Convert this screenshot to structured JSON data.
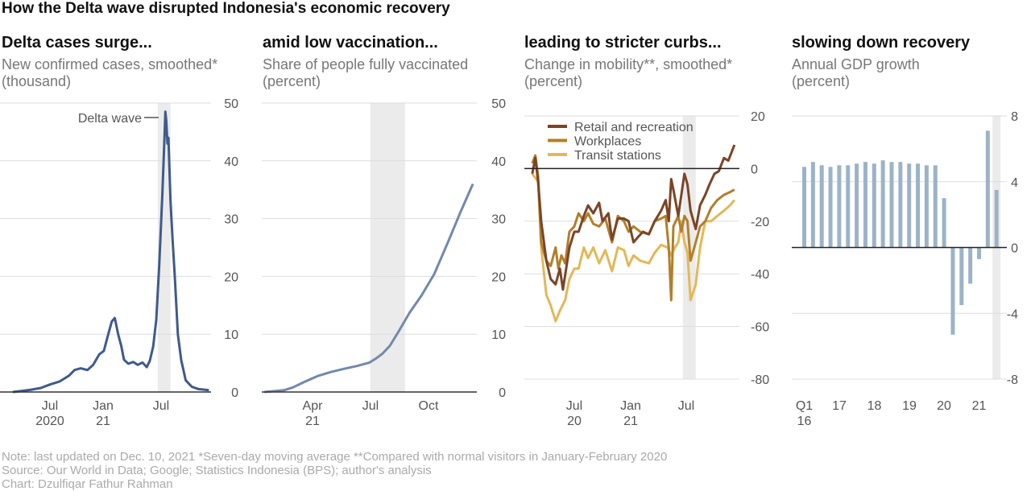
{
  "title": "How the Delta wave disrupted Indonesia's economic recovery",
  "footnotes": {
    "note": "Note: last updated on Dec. 10, 2021 *Seven-day moving average **Compared with normal visitors in January-February 2020",
    "source": "Source: Our World in Data; Google; Statistics Indonesia (BPS); author's analysis",
    "chart": "Chart: Dzulfiqar Fathur Rahman"
  },
  "colors": {
    "cases": "#3f5a8c",
    "vaccination": "#7289ab",
    "retail": "#7b4427",
    "workplaces": "#b17f2b",
    "transit": "#e2b858",
    "gdp_bar": "#9cb3c7",
    "highlight": "#ebebeb",
    "grid": "#dddddd"
  },
  "chart_data": [
    {
      "type": "line",
      "title": "Delta cases surge...",
      "subtitle": [
        "New confirmed cases, smoothed*",
        "(thousand)"
      ],
      "annotation": "Delta wave",
      "highlight": [
        "2021-06-20",
        "2021-08-01"
      ],
      "ylim": [
        0,
        50
      ],
      "yticks": [
        "0",
        "10",
        "20",
        "30",
        "40",
        "50"
      ],
      "xticks": [
        [
          "Jul",
          "2020"
        ],
        [
          "Jan",
          "21"
        ],
        [
          "Jul",
          ""
        ]
      ],
      "x": [
        "2020-03-01",
        "2020-04-01",
        "2020-05-01",
        "2020-06-01",
        "2020-07-01",
        "2020-08-01",
        "2020-09-01",
        "2020-09-20",
        "2020-10-10",
        "2020-11-01",
        "2020-11-20",
        "2020-12-10",
        "2020-12-25",
        "2021-01-10",
        "2021-01-20",
        "2021-01-30",
        "2021-02-10",
        "2021-02-20",
        "2021-03-01",
        "2021-03-15",
        "2021-04-01",
        "2021-04-15",
        "2021-05-01",
        "2021-05-15",
        "2021-05-25",
        "2021-06-05",
        "2021-06-15",
        "2021-06-25",
        "2021-07-05",
        "2021-07-12",
        "2021-07-15",
        "2021-07-18",
        "2021-07-22",
        "2021-07-25",
        "2021-08-01",
        "2021-08-08",
        "2021-08-15",
        "2021-08-25",
        "2021-09-05",
        "2021-09-20",
        "2021-10-10",
        "2021-11-01",
        "2021-11-20",
        "2021-12-05"
      ],
      "values": [
        0.0,
        0.2,
        0.4,
        0.7,
        1.3,
        1.8,
        2.8,
        3.8,
        4.1,
        3.8,
        4.7,
        6.5,
        7.1,
        10.3,
        12.2,
        12.8,
        10.0,
        8.0,
        5.6,
        4.9,
        5.2,
        4.7,
        5.1,
        4.3,
        5.4,
        7.9,
        12.5,
        22.0,
        34.0,
        44.0,
        48.5,
        47.0,
        43.0,
        44.0,
        33.0,
        26.0,
        20.0,
        10.0,
        5.5,
        2.0,
        0.9,
        0.5,
        0.4,
        0.3
      ]
    },
    {
      "type": "line",
      "title": "amid low vaccination...",
      "subtitle": [
        "Share of people fully vaccinated",
        "(percent)"
      ],
      "highlight": [
        "2021-07-01",
        "2021-08-25"
      ],
      "ylim": [
        0,
        50
      ],
      "yticks": [
        "0",
        "10",
        "20",
        "30",
        "40",
        "50"
      ],
      "xticks": [
        [
          "Apr",
          "21"
        ],
        [
          "Jul",
          ""
        ],
        [
          "Oct",
          ""
        ]
      ],
      "x": [
        "2021-01-15",
        "2021-02-15",
        "2021-03-01",
        "2021-03-20",
        "2021-04-10",
        "2021-05-01",
        "2021-05-20",
        "2021-06-10",
        "2021-06-30",
        "2021-07-10",
        "2021-07-20",
        "2021-08-01",
        "2021-08-15",
        "2021-09-01",
        "2021-09-20",
        "2021-10-10",
        "2021-11-01",
        "2021-11-20",
        "2021-12-10"
      ],
      "values": [
        0,
        0.3,
        0.8,
        1.8,
        2.8,
        3.5,
        4.0,
        4.5,
        5.1,
        5.8,
        6.6,
        8.0,
        10.5,
        13.7,
        16.7,
        20.4,
        26.0,
        31.0,
        36.0
      ]
    },
    {
      "type": "line",
      "title": "leading to stricter curbs...",
      "subtitle": [
        "Change in mobility**, smoothed*",
        "(percent)"
      ],
      "highlight": [
        "2021-06-20",
        "2021-08-01"
      ],
      "ylim": [
        -80,
        20
      ],
      "yticks": [
        "20",
        "0",
        "-20",
        "-40",
        "-60",
        "-80"
      ],
      "xticks": [
        [
          "Jul",
          "20"
        ],
        [
          "Jan",
          "21"
        ],
        [
          "Jul",
          ""
        ]
      ],
      "series": [
        {
          "name": "Retail and recreation",
          "x": [
            "2020-02-15",
            "2020-02-25",
            "2020-03-05",
            "2020-03-15",
            "2020-04-01",
            "2020-04-15",
            "2020-05-01",
            "2020-05-15",
            "2020-05-25",
            "2020-06-15",
            "2020-07-01",
            "2020-07-15",
            "2020-08-01",
            "2020-08-15",
            "2020-09-01",
            "2020-09-20",
            "2020-10-01",
            "2020-10-20",
            "2020-11-01",
            "2020-11-20",
            "2020-12-10",
            "2020-12-25",
            "2021-01-10",
            "2021-01-25",
            "2021-02-10",
            "2021-03-01",
            "2021-03-20",
            "2021-04-10",
            "2021-04-25",
            "2021-05-05",
            "2021-05-13",
            "2021-05-20",
            "2021-06-05",
            "2021-06-15",
            "2021-06-25",
            "2021-07-05",
            "2021-07-15",
            "2021-08-01",
            "2021-08-15",
            "2021-09-01",
            "2021-09-15",
            "2021-10-01",
            "2021-10-15",
            "2021-11-01",
            "2021-11-15",
            "2021-12-05"
          ],
          "values": [
            -2,
            4,
            -5,
            -20,
            -35,
            -42,
            -44,
            -38,
            -46,
            -30,
            -24,
            -24,
            -18,
            -14,
            -17,
            -13,
            -20,
            -17,
            -27,
            -19,
            -19,
            -20,
            -28,
            -26,
            -24,
            -25,
            -20,
            -16,
            -12,
            -20,
            -4,
            -8,
            -18,
            -10,
            -2,
            -6,
            -16,
            -23,
            -14,
            -10,
            -6,
            -2,
            -1,
            4,
            3,
            9
          ]
        },
        {
          "name": "Workplaces",
          "x": [
            "2020-02-15",
            "2020-02-25",
            "2020-03-05",
            "2020-03-15",
            "2020-04-01",
            "2020-04-15",
            "2020-05-01",
            "2020-05-10",
            "2020-05-20",
            "2020-06-01",
            "2020-06-15",
            "2020-07-01",
            "2020-07-15",
            "2020-08-01",
            "2020-08-15",
            "2020-09-01",
            "2020-09-20",
            "2020-10-10",
            "2020-11-01",
            "2020-11-20",
            "2020-12-10",
            "2020-12-25",
            "2021-01-10",
            "2021-02-01",
            "2021-03-01",
            "2021-03-20",
            "2021-04-10",
            "2021-04-25",
            "2021-05-05",
            "2021-05-13",
            "2021-05-20",
            "2021-06-05",
            "2021-06-15",
            "2021-06-25",
            "2021-07-05",
            "2021-07-15",
            "2021-08-01",
            "2021-08-15",
            "2021-09-01",
            "2021-09-20",
            "2021-10-10",
            "2021-11-01",
            "2021-11-20",
            "2021-12-05"
          ],
          "values": [
            2,
            5,
            -3,
            -28,
            -35,
            -37,
            -30,
            -38,
            -33,
            -36,
            -24,
            -22,
            -17,
            -20,
            -17,
            -21,
            -22,
            -19,
            -28,
            -18,
            -20,
            -24,
            -22,
            -24,
            -25,
            -20,
            -19,
            -18,
            -30,
            -50,
            -22,
            -18,
            -24,
            -18,
            -20,
            -35,
            -28,
            -22,
            -20,
            -15,
            -12,
            -10,
            -9,
            -8
          ]
        },
        {
          "name": "Transit stations",
          "x": [
            "2020-02-15",
            "2020-03-05",
            "2020-03-15",
            "2020-04-01",
            "2020-04-15",
            "2020-05-01",
            "2020-05-15",
            "2020-06-01",
            "2020-06-15",
            "2020-07-01",
            "2020-07-15",
            "2020-08-01",
            "2020-08-15",
            "2020-09-01",
            "2020-09-20",
            "2020-10-10",
            "2020-11-01",
            "2020-11-20",
            "2020-12-10",
            "2020-12-25",
            "2021-01-10",
            "2021-02-01",
            "2021-03-01",
            "2021-03-20",
            "2021-04-10",
            "2021-05-01",
            "2021-05-13",
            "2021-05-25",
            "2021-06-05",
            "2021-06-15",
            "2021-06-25",
            "2021-07-05",
            "2021-07-15",
            "2021-08-01",
            "2021-08-15",
            "2021-09-01",
            "2021-09-20",
            "2021-10-10",
            "2021-11-01",
            "2021-11-20",
            "2021-12-05"
          ],
          "values": [
            -2,
            -5,
            -30,
            -48,
            -52,
            -58,
            -54,
            -50,
            -42,
            -38,
            -38,
            -30,
            -34,
            -30,
            -36,
            -31,
            -39,
            -30,
            -31,
            -37,
            -33,
            -35,
            -36,
            -32,
            -29,
            -30,
            -33,
            -30,
            -28,
            -20,
            -28,
            -32,
            -50,
            -44,
            -30,
            -20,
            -20,
            -18,
            -16,
            -14,
            -12
          ]
        }
      ]
    },
    {
      "type": "bar",
      "title": "slowing down recovery",
      "subtitle": [
        "Annual GDP growth",
        "(percent)"
      ],
      "ylim": [
        -8,
        8
      ],
      "yticks": [
        "8",
        "4",
        "0",
        "-4",
        "-8"
      ],
      "xticks": [
        [
          "Q1",
          "16"
        ],
        [
          "17",
          ""
        ],
        [
          "18",
          ""
        ],
        [
          "19",
          ""
        ],
        [
          "20",
          ""
        ],
        [
          "21",
          ""
        ]
      ],
      "categories": [
        "Q1 2016",
        "Q2 2016",
        "Q3 2016",
        "Q4 2016",
        "Q1 2017",
        "Q2 2017",
        "Q3 2017",
        "Q4 2017",
        "Q1 2018",
        "Q2 2018",
        "Q3 2018",
        "Q4 2018",
        "Q1 2019",
        "Q2 2019",
        "Q3 2019",
        "Q4 2019",
        "Q1 2020",
        "Q2 2020",
        "Q3 2020",
        "Q4 2020",
        "Q1 2021",
        "Q2 2021",
        "Q3 2021"
      ],
      "values": [
        4.9,
        5.2,
        5.0,
        4.9,
        5.0,
        5.0,
        5.1,
        5.2,
        5.1,
        5.3,
        5.2,
        5.2,
        5.1,
        5.1,
        5.0,
        5.0,
        3.0,
        -5.3,
        -3.5,
        -2.2,
        -0.7,
        7.1,
        3.5
      ],
      "highlight": "Q3 2021"
    }
  ]
}
